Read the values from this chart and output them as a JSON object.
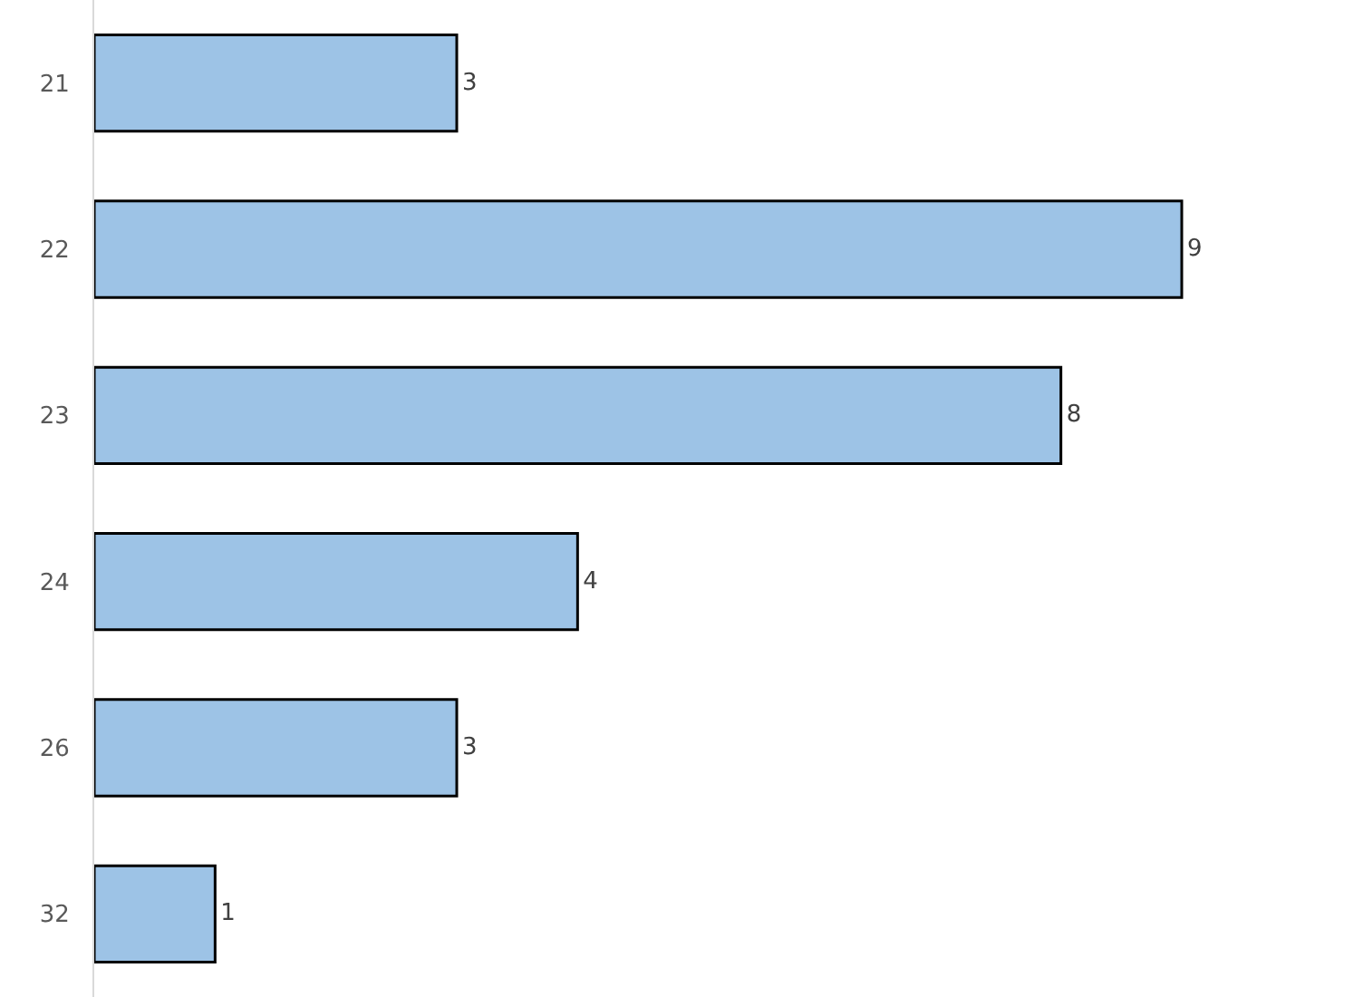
{
  "chart_data": {
    "type": "bar",
    "orientation": "horizontal",
    "categories": [
      "21",
      "22",
      "23",
      "24",
      "26",
      "32"
    ],
    "values": [
      3,
      9,
      8,
      4,
      3,
      1
    ],
    "color": "#9dc3e6",
    "data_labels": true
  }
}
